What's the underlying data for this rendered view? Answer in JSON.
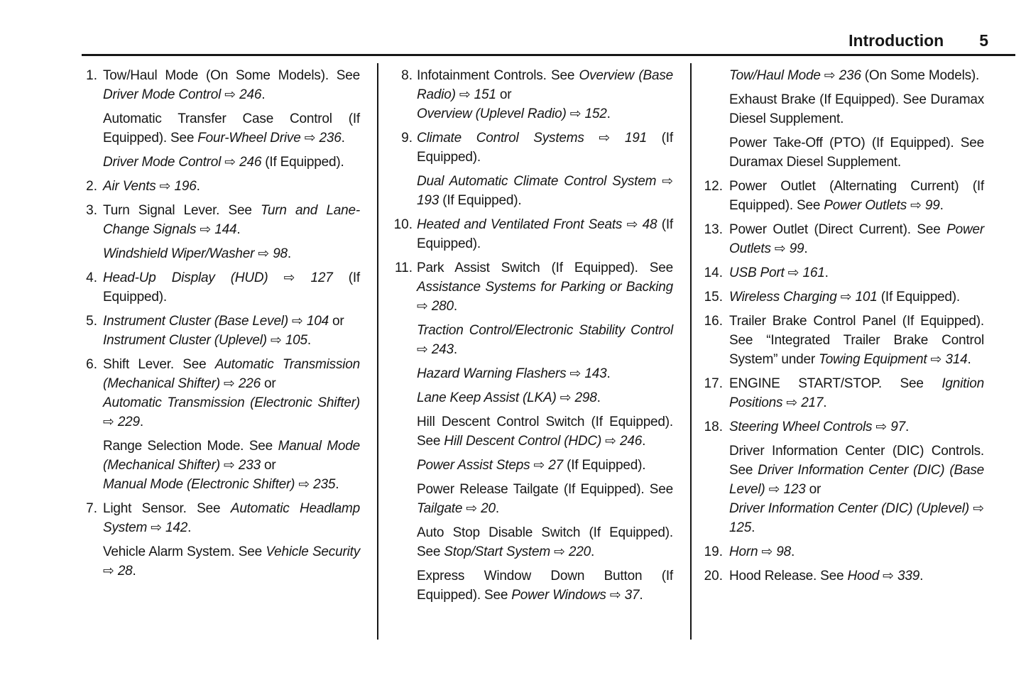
{
  "header": {
    "title": "Introduction",
    "page_number": "5"
  },
  "arrow_glyph": "⇨",
  "columns": [
    {
      "items": [
        {
          "n": "1.",
          "paras": [
            [
              [
                "n",
                "Tow/Haul Mode (On Some Models). See "
              ],
              [
                "i",
                "Driver Mode Control"
              ],
              [
                "a",
                " ⇨ "
              ],
              [
                "i",
                "246"
              ],
              [
                "n",
                "."
              ]
            ],
            [
              [
                "n",
                "Automatic Transfer Case Control (If Equipped). See "
              ],
              [
                "i",
                "Four-Wheel Drive"
              ],
              [
                "a",
                " ⇨ "
              ],
              [
                "i",
                "236"
              ],
              [
                "n",
                "."
              ]
            ],
            [
              [
                "i",
                "Driver Mode Control"
              ],
              [
                "a",
                " ⇨ "
              ],
              [
                "i",
                "246"
              ],
              [
                "n",
                " (If Equipped)."
              ]
            ]
          ]
        },
        {
          "n": "2.",
          "paras": [
            [
              [
                "i",
                "Air Vents"
              ],
              [
                "a",
                " ⇨ "
              ],
              [
                "i",
                "196"
              ],
              [
                "n",
                "."
              ]
            ]
          ]
        },
        {
          "n": "3.",
          "paras": [
            [
              [
                "n",
                "Turn Signal Lever. See "
              ],
              [
                "i",
                "Turn and Lane-Change Signals"
              ],
              [
                "a",
                " ⇨ "
              ],
              [
                "i",
                "144"
              ],
              [
                "n",
                "."
              ]
            ],
            [
              [
                "i",
                "Windshield Wiper/Washer"
              ],
              [
                "a",
                " ⇨ "
              ],
              [
                "i",
                "98"
              ],
              [
                "n",
                "."
              ]
            ]
          ]
        },
        {
          "n": "4.",
          "paras": [
            [
              [
                "i",
                "Head-Up Display (HUD)"
              ],
              [
                "a",
                " ⇨ "
              ],
              [
                "i",
                "127"
              ],
              [
                "n",
                " (If Equipped)."
              ]
            ]
          ]
        },
        {
          "n": "5.",
          "paras": [
            [
              [
                "i",
                "Instrument Cluster (Base Level)"
              ],
              [
                "a",
                " ⇨ "
              ],
              [
                "i",
                "104"
              ],
              [
                "n",
                " or"
              ],
              [
                "br",
                ""
              ],
              [
                "i",
                "Instrument Cluster (Uplevel)"
              ],
              [
                "a",
                " ⇨ "
              ],
              [
                "i",
                "105"
              ],
              [
                "n",
                "."
              ]
            ]
          ]
        },
        {
          "n": "6.",
          "paras": [
            [
              [
                "n",
                "Shift Lever. See "
              ],
              [
                "i",
                "Automatic Transmission (Mechanical Shifter)"
              ],
              [
                "a",
                " ⇨ "
              ],
              [
                "i",
                "226"
              ],
              [
                "n",
                " or"
              ],
              [
                "br",
                ""
              ],
              [
                "i",
                "Automatic Transmission (Electronic Shifter)"
              ],
              [
                "a",
                " ⇨ "
              ],
              [
                "i",
                "229"
              ],
              [
                "n",
                "."
              ]
            ],
            [
              [
                "n",
                "Range Selection Mode. See "
              ],
              [
                "i",
                "Manual Mode (Mechanical Shifter)"
              ],
              [
                "a",
                " ⇨ "
              ],
              [
                "i",
                "233"
              ],
              [
                "n",
                " or"
              ],
              [
                "br",
                ""
              ],
              [
                "i",
                "Manual Mode (Electronic Shifter)"
              ],
              [
                "a",
                " ⇨ "
              ],
              [
                "i",
                "235"
              ],
              [
                "n",
                "."
              ]
            ]
          ]
        },
        {
          "n": "7.",
          "paras": [
            [
              [
                "n",
                "Light Sensor. See "
              ],
              [
                "i",
                "Automatic Headlamp System"
              ],
              [
                "a",
                " ⇨ "
              ],
              [
                "i",
                "142"
              ],
              [
                "n",
                "."
              ]
            ],
            [
              [
                "n",
                "Vehicle Alarm System. See "
              ],
              [
                "i",
                "Vehicle Security"
              ],
              [
                "a",
                " ⇨ "
              ],
              [
                "i",
                "28"
              ],
              [
                "n",
                "."
              ]
            ]
          ]
        }
      ]
    },
    {
      "items": [
        {
          "n": "8.",
          "paras": [
            [
              [
                "n",
                "Infotainment Controls. See "
              ],
              [
                "i",
                "Overview (Base Radio)"
              ],
              [
                "a",
                " ⇨ "
              ],
              [
                "i",
                "151"
              ],
              [
                "n",
                " or"
              ],
              [
                "br",
                ""
              ],
              [
                "i",
                "Overview (Uplevel Radio)"
              ],
              [
                "a",
                " ⇨ "
              ],
              [
                "i",
                "152"
              ],
              [
                "n",
                "."
              ]
            ]
          ]
        },
        {
          "n": "9.",
          "paras": [
            [
              [
                "i",
                "Climate Control Systems"
              ],
              [
                "a",
                " ⇨ "
              ],
              [
                "i",
                "191"
              ],
              [
                "n",
                " (If Equipped)."
              ]
            ],
            [
              [
                "i",
                "Dual Automatic Climate Control System"
              ],
              [
                "a",
                " ⇨ "
              ],
              [
                "i",
                "193"
              ],
              [
                "n",
                " (If Equipped)."
              ]
            ]
          ]
        },
        {
          "n": "10.",
          "paras": [
            [
              [
                "i",
                "Heated and Ventilated Front Seats"
              ],
              [
                "a",
                " ⇨ "
              ],
              [
                "i",
                "48"
              ],
              [
                "n",
                " (If Equipped)."
              ]
            ]
          ]
        },
        {
          "n": "11.",
          "paras": [
            [
              [
                "n",
                "Park Assist Switch (If Equipped). See "
              ],
              [
                "i",
                "Assistance Systems for Parking or Backing"
              ],
              [
                "a",
                " ⇨ "
              ],
              [
                "i",
                "280"
              ],
              [
                "n",
                "."
              ]
            ],
            [
              [
                "i",
                "Traction Control/Electronic Stability Control"
              ],
              [
                "a",
                " ⇨ "
              ],
              [
                "i",
                "243"
              ],
              [
                "n",
                "."
              ]
            ],
            [
              [
                "i",
                "Hazard Warning Flashers"
              ],
              [
                "a",
                " ⇨ "
              ],
              [
                "i",
                "143"
              ],
              [
                "n",
                "."
              ]
            ],
            [
              [
                "i",
                "Lane Keep Assist (LKA)"
              ],
              [
                "a",
                " ⇨ "
              ],
              [
                "i",
                "298"
              ],
              [
                "n",
                "."
              ]
            ],
            [
              [
                "n",
                "Hill Descent Control Switch (If Equipped). See "
              ],
              [
                "i",
                "Hill Descent Control (HDC)"
              ],
              [
                "a",
                " ⇨ "
              ],
              [
                "i",
                "246"
              ],
              [
                "n",
                "."
              ]
            ],
            [
              [
                "i",
                "Power Assist Steps"
              ],
              [
                "a",
                " ⇨ "
              ],
              [
                "i",
                "27"
              ],
              [
                "n",
                " (If Equipped)."
              ]
            ],
            [
              [
                "n",
                "Power Release Tailgate (If Equipped). See "
              ],
              [
                "i",
                "Tailgate"
              ],
              [
                "a",
                " ⇨ "
              ],
              [
                "i",
                "20"
              ],
              [
                "n",
                "."
              ]
            ],
            [
              [
                "n",
                "Auto Stop Disable Switch (If Equipped). See "
              ],
              [
                "i",
                "Stop/Start System"
              ],
              [
                "a",
                " ⇨ "
              ],
              [
                "i",
                "220"
              ],
              [
                "n",
                "."
              ]
            ],
            [
              [
                "n",
                "Express Window Down Button (If Equipped). See "
              ],
              [
                "i",
                "Power Windows"
              ],
              [
                "a",
                " ⇨ "
              ],
              [
                "i",
                "37"
              ],
              [
                "n",
                "."
              ]
            ]
          ]
        }
      ]
    },
    {
      "items": [
        {
          "n": "",
          "paras": [
            [
              [
                "i",
                "Tow/Haul Mode"
              ],
              [
                "a",
                " ⇨ "
              ],
              [
                "i",
                "236"
              ],
              [
                "n",
                " (On Some Models)."
              ]
            ],
            [
              [
                "n",
                "Exhaust Brake (If Equipped). See Duramax Diesel Supplement."
              ]
            ],
            [
              [
                "n",
                "Power Take-Off (PTO) (If Equipped). See Duramax Diesel Supplement."
              ]
            ]
          ]
        },
        {
          "n": "12.",
          "paras": [
            [
              [
                "n",
                "Power Outlet (Alternating Current) (If Equipped). See "
              ],
              [
                "i",
                "Power Outlets"
              ],
              [
                "a",
                " ⇨ "
              ],
              [
                "i",
                "99"
              ],
              [
                "n",
                "."
              ]
            ]
          ]
        },
        {
          "n": "13.",
          "paras": [
            [
              [
                "n",
                "Power Outlet (Direct Current). See "
              ],
              [
                "i",
                "Power Outlets"
              ],
              [
                "a",
                " ⇨ "
              ],
              [
                "i",
                "99"
              ],
              [
                "n",
                "."
              ]
            ]
          ]
        },
        {
          "n": "14.",
          "paras": [
            [
              [
                "i",
                "USB Port"
              ],
              [
                "a",
                " ⇨ "
              ],
              [
                "i",
                "161"
              ],
              [
                "n",
                "."
              ]
            ]
          ]
        },
        {
          "n": "15.",
          "paras": [
            [
              [
                "i",
                "Wireless Charging"
              ],
              [
                "a",
                " ⇨ "
              ],
              [
                "i",
                "101"
              ],
              [
                "n",
                " (If Equipped)."
              ]
            ]
          ]
        },
        {
          "n": "16.",
          "paras": [
            [
              [
                "n",
                "Trailer Brake Control Panel (If Equipped). See “Integrated Trailer Brake Control System” under "
              ],
              [
                "i",
                "Towing Equipment"
              ],
              [
                "a",
                " ⇨ "
              ],
              [
                "i",
                "314"
              ],
              [
                "n",
                "."
              ]
            ]
          ]
        },
        {
          "n": "17.",
          "paras": [
            [
              [
                "n",
                "ENGINE START/STOP. See "
              ],
              [
                "i",
                "Ignition Positions"
              ],
              [
                "a",
                " ⇨ "
              ],
              [
                "i",
                "217"
              ],
              [
                "n",
                "."
              ]
            ]
          ]
        },
        {
          "n": "18.",
          "paras": [
            [
              [
                "i",
                "Steering Wheel Controls"
              ],
              [
                "a",
                " ⇨ "
              ],
              [
                "i",
                "97"
              ],
              [
                "n",
                "."
              ]
            ],
            [
              [
                "n",
                "Driver Information Center (DIC) Controls. See "
              ],
              [
                "i",
                "Driver Information Center (DIC) (Base Level)"
              ],
              [
                "a",
                " ⇨ "
              ],
              [
                "i",
                "123"
              ],
              [
                "n",
                " or"
              ],
              [
                "br",
                ""
              ],
              [
                "i",
                "Driver Information Center (DIC) (Uplevel)"
              ],
              [
                "a",
                " ⇨ "
              ],
              [
                "i",
                "125"
              ],
              [
                "n",
                "."
              ]
            ]
          ]
        },
        {
          "n": "19.",
          "paras": [
            [
              [
                "i",
                "Horn"
              ],
              [
                "a",
                " ⇨ "
              ],
              [
                "i",
                "98"
              ],
              [
                "n",
                "."
              ]
            ]
          ]
        },
        {
          "n": "20.",
          "paras": [
            [
              [
                "n",
                "Hood Release. See "
              ],
              [
                "i",
                "Hood"
              ],
              [
                "a",
                " ⇨ "
              ],
              [
                "i",
                "339"
              ],
              [
                "n",
                "."
              ]
            ]
          ]
        }
      ]
    }
  ]
}
